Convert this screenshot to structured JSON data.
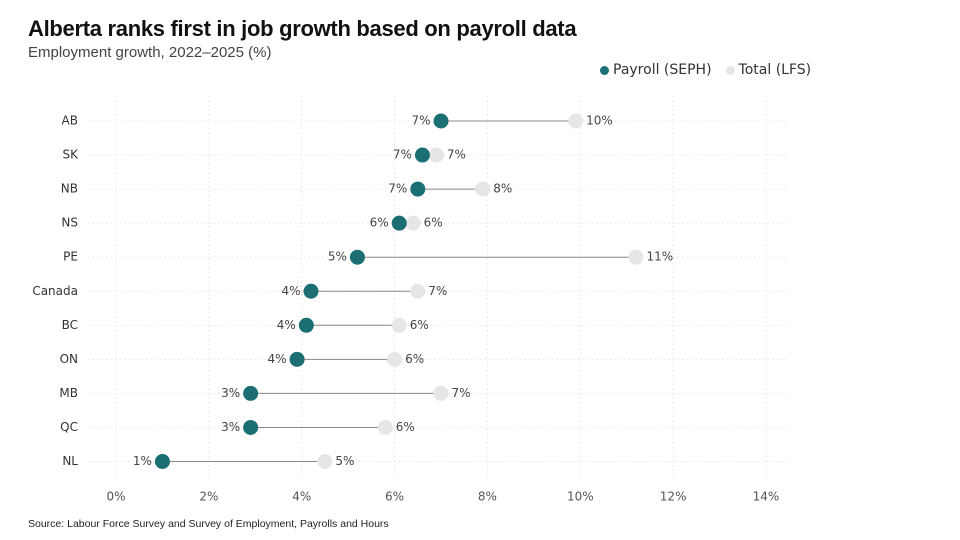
{
  "title": "Alberta ranks first in job growth based on payroll data",
  "subtitle": "Employment growth, 2022–2025 (%)",
  "source": "Source: Labour Force Survey and Survey of Employment, Payrolls and Hours",
  "colors": {
    "payroll": "#1b6e72",
    "total": "#e6e6e6",
    "connector": "#888888",
    "grid": "#e4e4e4"
  },
  "chart_data": {
    "type": "dumbbell",
    "title": "Alberta ranks first in job growth based on payroll data",
    "subtitle": "Employment growth, 2022–2025 (%)",
    "xlabel": "",
    "ylabel": "",
    "xlim": [
      0,
      14
    ],
    "x_ticks": [
      0,
      2,
      4,
      6,
      8,
      10,
      12,
      14
    ],
    "x_tick_labels": [
      "0%",
      "2%",
      "4%",
      "6%",
      "8%",
      "10%",
      "12%",
      "14%"
    ],
    "grid": true,
    "legend_position": "top-right",
    "categories": [
      "AB",
      "SK",
      "NB",
      "NS",
      "PE",
      "Canada",
      "BC",
      "ON",
      "MB",
      "QC",
      "NL"
    ],
    "series": [
      {
        "name": "Payroll (SEPH)",
        "values": [
          7.0,
          6.6,
          6.5,
          6.1,
          5.2,
          4.2,
          4.1,
          3.9,
          2.9,
          2.9,
          1.0
        ],
        "labels": [
          "7%",
          "7%",
          "7%",
          "6%",
          "5%",
          "4%",
          "4%",
          "4%",
          "3%",
          "3%",
          "1%"
        ]
      },
      {
        "name": "Total (LFS)",
        "values": [
          9.9,
          6.9,
          7.9,
          6.4,
          11.2,
          6.5,
          6.1,
          6.0,
          7.0,
          5.8,
          4.5
        ],
        "labels": [
          "10%",
          "7%",
          "8%",
          "6%",
          "11%",
          "7%",
          "6%",
          "6%",
          "7%",
          "6%",
          "5%"
        ]
      }
    ]
  }
}
